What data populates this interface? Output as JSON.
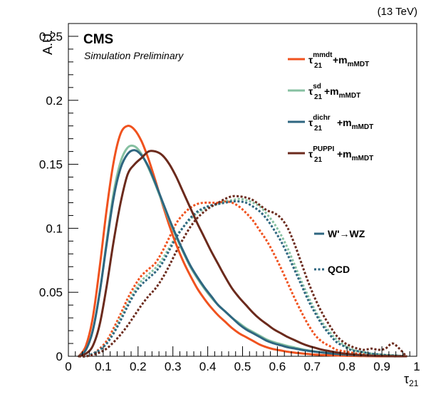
{
  "header": {
    "energy_label": "(13 TeV)",
    "experiment": "CMS",
    "subtitle": "Simulation Preliminary"
  },
  "chart_data": {
    "type": "line",
    "xlabel": "τ21",
    "ylabel": "A.U.",
    "xlim": [
      0,
      1
    ],
    "ylim": [
      0,
      0.26
    ],
    "x_ticks": [
      "0",
      "0.1",
      "0.2",
      "0.3",
      "0.4",
      "0.5",
      "0.6",
      "0.7",
      "0.8",
      "0.9",
      "1"
    ],
    "y_ticks": [
      "0",
      "0.05",
      "0.1",
      "0.15",
      "0.2",
      "0.25"
    ],
    "grid": false,
    "legend_placement": "top-right",
    "x": [
      0.03,
      0.05,
      0.07,
      0.09,
      0.11,
      0.13,
      0.15,
      0.17,
      0.19,
      0.21,
      0.23,
      0.25,
      0.27,
      0.29,
      0.31,
      0.33,
      0.35,
      0.37,
      0.39,
      0.41,
      0.43,
      0.45,
      0.47,
      0.49,
      0.51,
      0.53,
      0.55,
      0.57,
      0.59,
      0.61,
      0.63,
      0.65,
      0.67,
      0.69,
      0.71,
      0.73,
      0.75,
      0.77,
      0.79,
      0.81,
      0.83,
      0.85,
      0.87,
      0.89,
      0.91,
      0.93,
      0.95,
      0.97
    ],
    "series": [
      {
        "name": "τ21mmdt+mmMDT",
        "label_sym": "τ",
        "label_sub": "21",
        "label_sup": "mmdt",
        "label_m": "+m",
        "label_msub": "mMDT",
        "process": "W'→WZ",
        "style": "solid",
        "color": "#f0521e",
        "values": [
          0.0,
          0.008,
          0.03,
          0.07,
          0.115,
          0.152,
          0.174,
          0.18,
          0.177,
          0.168,
          0.154,
          0.137,
          0.119,
          0.102,
          0.087,
          0.074,
          0.063,
          0.053,
          0.045,
          0.038,
          0.032,
          0.027,
          0.022,
          0.018,
          0.015,
          0.012,
          0.009,
          0.007,
          0.0055,
          0.0045,
          0.0035,
          0.0028,
          0.0022,
          0.0017,
          0.0013,
          0.001,
          0.0008,
          0.0006,
          0.0004,
          0.0003,
          0.0002,
          0.0001,
          0.0001,
          0.0,
          0.0,
          0.0,
          0.0,
          0.0
        ]
      },
      {
        "name": "τ21sd+mmMDT",
        "label_sym": "τ",
        "label_sub": "21",
        "label_sup": "sd",
        "label_m": "+m",
        "label_msub": "mMDT",
        "process": "W'→WZ",
        "style": "solid",
        "color": "#86c0a1",
        "values": [
          0.0,
          0.005,
          0.02,
          0.05,
          0.09,
          0.128,
          0.152,
          0.163,
          0.164,
          0.158,
          0.147,
          0.134,
          0.12,
          0.106,
          0.093,
          0.081,
          0.07,
          0.061,
          0.053,
          0.046,
          0.04,
          0.035,
          0.03,
          0.026,
          0.022,
          0.019,
          0.016,
          0.013,
          0.011,
          0.0095,
          0.008,
          0.0068,
          0.0055,
          0.0045,
          0.0037,
          0.003,
          0.0025,
          0.002,
          0.0016,
          0.0012,
          0.0009,
          0.0007,
          0.0005,
          0.0004,
          0.0003,
          0.0002,
          0.0001,
          0.0
        ]
      },
      {
        "name": "τ21dichr+mmMDT",
        "label_sym": "τ",
        "label_sub": "21",
        "label_sup": "dichr",
        "label_m": "+m",
        "label_msub": "mMDT",
        "process": "W'→WZ",
        "style": "solid",
        "color": "#2e6680",
        "values": [
          0.0,
          0.005,
          0.02,
          0.05,
          0.088,
          0.124,
          0.147,
          0.158,
          0.161,
          0.157,
          0.148,
          0.135,
          0.121,
          0.107,
          0.094,
          0.082,
          0.071,
          0.062,
          0.054,
          0.047,
          0.04,
          0.035,
          0.03,
          0.025,
          0.021,
          0.018,
          0.015,
          0.012,
          0.01,
          0.0085,
          0.007,
          0.006,
          0.005,
          0.0042,
          0.0035,
          0.0029,
          0.0023,
          0.0018,
          0.0014,
          0.0011,
          0.0008,
          0.0006,
          0.0004,
          0.0003,
          0.0002,
          0.0001,
          0.0001,
          0.0
        ]
      },
      {
        "name": "τ21PUPPI+mmMDT",
        "label_sym": "τ",
        "label_sub": "21",
        "label_sup": "PUPPI",
        "label_m": "+m",
        "label_msub": "mMDT",
        "process": "W'→WZ",
        "style": "solid",
        "color": "#6b2a1c",
        "values": [
          0.0,
          0.002,
          0.008,
          0.025,
          0.055,
          0.09,
          0.12,
          0.142,
          0.15,
          0.155,
          0.16,
          0.16,
          0.157,
          0.15,
          0.14,
          0.128,
          0.116,
          0.104,
          0.093,
          0.082,
          0.072,
          0.062,
          0.053,
          0.046,
          0.04,
          0.034,
          0.029,
          0.025,
          0.021,
          0.018,
          0.015,
          0.0125,
          0.01,
          0.008,
          0.0065,
          0.005,
          0.004,
          0.003,
          0.0022,
          0.0016,
          0.0011,
          0.0008,
          0.0005,
          0.0003,
          0.0002,
          0.0001,
          0.0,
          0.0
        ]
      },
      {
        "name": "τ21mmdt+mmMDT QCD",
        "process": "QCD",
        "style": "dotted",
        "color": "#f0521e",
        "values": [
          0.0,
          0.0,
          0.002,
          0.006,
          0.012,
          0.022,
          0.033,
          0.045,
          0.055,
          0.063,
          0.068,
          0.073,
          0.082,
          0.093,
          0.104,
          0.111,
          0.116,
          0.119,
          0.12,
          0.12,
          0.12,
          0.121,
          0.12,
          0.117,
          0.112,
          0.106,
          0.098,
          0.09,
          0.08,
          0.069,
          0.057,
          0.045,
          0.034,
          0.024,
          0.016,
          0.011,
          0.008,
          0.005,
          0.004,
          0.003,
          0.002,
          0.002,
          0.001,
          0.001,
          0.001,
          0.0,
          0.0,
          0.0
        ]
      },
      {
        "name": "τ21sd+mmMDT QCD",
        "process": "QCD",
        "style": "dotted",
        "color": "#86c0a1",
        "values": [
          0.0,
          0.0,
          0.002,
          0.005,
          0.01,
          0.019,
          0.03,
          0.041,
          0.051,
          0.059,
          0.064,
          0.069,
          0.076,
          0.085,
          0.094,
          0.101,
          0.107,
          0.112,
          0.115,
          0.117,
          0.119,
          0.121,
          0.122,
          0.123,
          0.122,
          0.12,
          0.117,
          0.111,
          0.104,
          0.095,
          0.084,
          0.071,
          0.058,
          0.046,
          0.035,
          0.026,
          0.019,
          0.013,
          0.009,
          0.006,
          0.004,
          0.003,
          0.002,
          0.0015,
          0.001,
          0.0007,
          0.0004,
          0.0
        ]
      },
      {
        "name": "τ21dichr+mmMDT QCD",
        "process": "QCD",
        "style": "dotted",
        "color": "#2e6680",
        "values": [
          0.0,
          0.0,
          0.002,
          0.005,
          0.01,
          0.018,
          0.028,
          0.039,
          0.049,
          0.056,
          0.061,
          0.066,
          0.073,
          0.083,
          0.093,
          0.101,
          0.108,
          0.113,
          0.116,
          0.118,
          0.119,
          0.12,
          0.121,
          0.121,
          0.12,
          0.117,
          0.113,
          0.107,
          0.099,
          0.09,
          0.079,
          0.067,
          0.055,
          0.043,
          0.033,
          0.024,
          0.017,
          0.011,
          0.008,
          0.005,
          0.004,
          0.003,
          0.002,
          0.0015,
          0.001,
          0.0007,
          0.0004,
          0.0
        ]
      },
      {
        "name": "τ21PUPPI+mmMDT QCD",
        "process": "QCD",
        "style": "dotted",
        "color": "#6b2a1c",
        "values": [
          0.0,
          0.0,
          0.001,
          0.003,
          0.006,
          0.011,
          0.017,
          0.024,
          0.032,
          0.04,
          0.047,
          0.053,
          0.061,
          0.071,
          0.082,
          0.092,
          0.101,
          0.108,
          0.113,
          0.117,
          0.12,
          0.123,
          0.125,
          0.125,
          0.124,
          0.122,
          0.118,
          0.114,
          0.112,
          0.108,
          0.1,
          0.087,
          0.072,
          0.057,
          0.044,
          0.033,
          0.024,
          0.016,
          0.011,
          0.008,
          0.006,
          0.005,
          0.006,
          0.005,
          0.006,
          0.01,
          0.006,
          0.0
        ]
      }
    ],
    "process_legend": [
      {
        "label": "W'→WZ",
        "style": "solid",
        "color": "#2e6680"
      },
      {
        "label": "QCD",
        "style": "dotted",
        "color": "#2e6680"
      }
    ]
  }
}
